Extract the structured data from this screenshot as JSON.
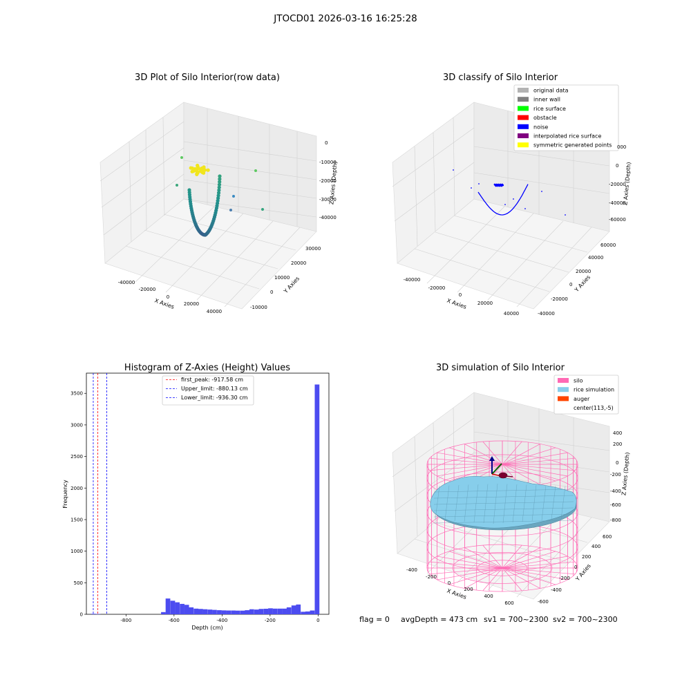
{
  "figure_title": "JTOCD01 2026-03-16 16:25:28",
  "footer": {
    "flag": "flag = 0",
    "avg_depth": "avgDepth = 473 cm",
    "sv1": "sv1 = 700~2300",
    "sv2": "sv2 = 700~2300"
  },
  "chart_data": [
    {
      "type": "scatter",
      "title": "3D Plot of Silo Interior(row data)",
      "xlabel": "X Axies",
      "ylabel": "Y Axies",
      "zlabel": "Z Axies (Depth)",
      "x_ticks": [
        "-40000",
        "-20000",
        "0",
        "20000",
        "40000"
      ],
      "y_ticks": [
        "-10000",
        "0",
        "10000",
        "20000",
        "30000"
      ],
      "z_ticks": [
        "0",
        "-10000",
        "-20000",
        "-30000",
        "-40000"
      ],
      "colormap": "viridis",
      "description_series": [
        {
          "name": "",
          "color": "#f1e51d"
        },
        {
          "name": "",
          "color": "#3b8bc2"
        },
        {
          "name": "",
          "color": "#5ec962"
        }
      ]
    },
    {
      "type": "scatter",
      "title": "3D classify of Silo Interior",
      "xlabel": "X Axies",
      "ylabel": "Y Axies",
      "zlabel": "Z Axies (Depth)",
      "x_ticks": [
        "-40000",
        "-20000",
        "0",
        "20000",
        "40000"
      ],
      "y_ticks": [
        "-40000",
        "-20000",
        "0",
        "20000",
        "40000",
        "60000"
      ],
      "z_ticks": [
        "0",
        "-20000",
        "-40000",
        "-60000"
      ],
      "z_top_tick": "000",
      "legend_position": "top-right",
      "legend": [
        {
          "name": "original data",
          "color": "#b3b3b3"
        },
        {
          "name": "inner wall",
          "color": "#808080"
        },
        {
          "name": "rice surface",
          "color": "#00ff00"
        },
        {
          "name": "obstacle",
          "color": "#ff0000"
        },
        {
          "name": "noise",
          "color": "#0000ff"
        },
        {
          "name": "interpolated rice surface",
          "color": "#800080"
        },
        {
          "name": "symmetric generated points",
          "color": "#ffff00"
        }
      ]
    },
    {
      "type": "bar",
      "title": "Histogram of Z-Axies (Height) Values",
      "xlabel": "Depth (cm)",
      "ylabel": "Frequency",
      "xlim": [
        -965,
        45
      ],
      "ylim": [
        0,
        3820
      ],
      "x_ticks": [
        -800,
        -600,
        -400,
        -200,
        0
      ],
      "y_ticks": [
        0,
        500,
        1000,
        1500,
        2000,
        2500,
        3000,
        3500
      ],
      "bar_color": "#4c4cf0",
      "bin_width": 19.4,
      "bins": [
        [
          -945,
          8
        ],
        [
          -926,
          6
        ],
        [
          -654,
          35
        ],
        [
          -635,
          250
        ],
        [
          -615,
          215
        ],
        [
          -596,
          190
        ],
        [
          -576,
          165
        ],
        [
          -557,
          150
        ],
        [
          -538,
          110
        ],
        [
          -518,
          90
        ],
        [
          -499,
          85
        ],
        [
          -480,
          80
        ],
        [
          -460,
          75
        ],
        [
          -441,
          70
        ],
        [
          -421,
          65
        ],
        [
          -402,
          62
        ],
        [
          -383,
          60
        ],
        [
          -363,
          60
        ],
        [
          -344,
          58
        ],
        [
          -324,
          58
        ],
        [
          -305,
          65
        ],
        [
          -286,
          80
        ],
        [
          -266,
          75
        ],
        [
          -247,
          85
        ],
        [
          -227,
          88
        ],
        [
          -208,
          95
        ],
        [
          -189,
          90
        ],
        [
          -169,
          90
        ],
        [
          -150,
          90
        ],
        [
          -131,
          110
        ],
        [
          -111,
          140
        ],
        [
          -92,
          155
        ],
        [
          -72,
          40
        ],
        [
          -53,
          45
        ],
        [
          -34,
          60
        ],
        [
          -14,
          3640
        ]
      ],
      "vlines": [
        {
          "x": -917.58,
          "color": "#ff0000",
          "label": "first_peak: -917.58 cm"
        },
        {
          "x": -880.13,
          "color": "#0000ff",
          "label": "Upper_limit: -880.13 cm"
        },
        {
          "x": -936.3,
          "color": "#0000ff",
          "label": "Lower_limit: -936.30 cm"
        }
      ],
      "legend_position": "top-center"
    },
    {
      "type": "scatter",
      "title": "3D simulation of Silo Interior",
      "xlabel": "X Axies",
      "ylabel": "Y Axies",
      "zlabel": "Z Axies (Depth)",
      "x_ticks": [
        "-400",
        "-200",
        "0",
        "200",
        "400",
        "600"
      ],
      "y_ticks": [
        "-600",
        "-400",
        "-200",
        "0",
        "200",
        "400",
        "600"
      ],
      "z_ticks": [
        "400",
        "200",
        "0",
        "-200",
        "-400",
        "-600",
        "-800"
      ],
      "legend_position": "top-right",
      "legend": [
        {
          "name": "silo",
          "color": "#ff69b4"
        },
        {
          "name": "rice simulation",
          "color": "#87ceeb"
        },
        {
          "name": "auger",
          "color": "#ff4500"
        },
        {
          "name": "center(113,-5)",
          "color": ""
        }
      ]
    }
  ]
}
